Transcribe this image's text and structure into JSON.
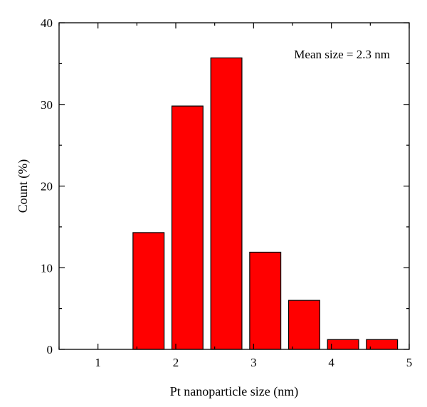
{
  "chart_data": {
    "type": "bar",
    "xlabel": "Pt nanoparticle size (nm)",
    "ylabel": "Count (%)",
    "annotation": "Mean size = 2.3 nm",
    "xlim": [
      0.5,
      5
    ],
    "ylim": [
      0,
      40
    ],
    "xticks": [
      1,
      2,
      3,
      4,
      5
    ],
    "yticks": [
      0,
      10,
      20,
      30,
      40
    ],
    "bar_width": 0.4,
    "bar_color": "#ff0000",
    "grid": false,
    "bars": [
      {
        "x": 1.65,
        "value": 14.3
      },
      {
        "x": 2.15,
        "value": 29.8
      },
      {
        "x": 2.65,
        "value": 35.7
      },
      {
        "x": 3.15,
        "value": 11.9
      },
      {
        "x": 3.65,
        "value": 6.0
      },
      {
        "x": 4.15,
        "value": 1.2
      },
      {
        "x": 4.65,
        "value": 1.2
      }
    ]
  }
}
